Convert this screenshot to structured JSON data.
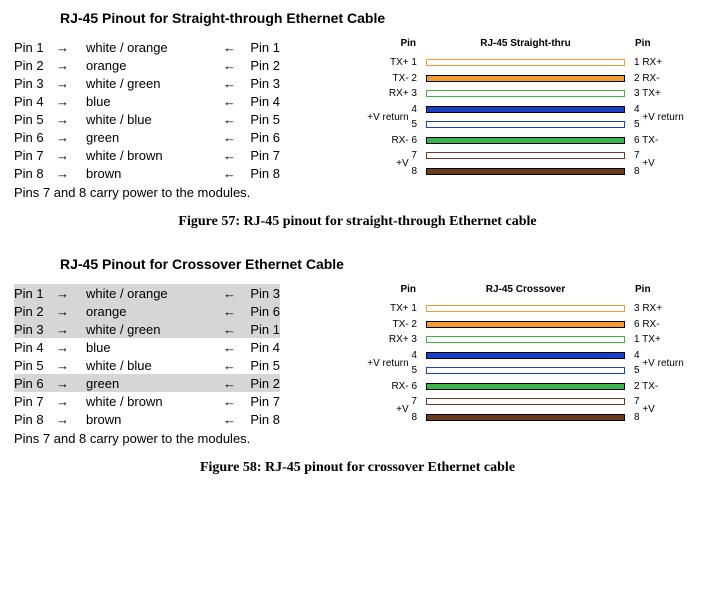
{
  "colors": {
    "white_orange": {
      "fill": "#ffffff",
      "border": "#f59a2e"
    },
    "orange": {
      "fill": "#f59a2e",
      "border": "#000000"
    },
    "white_green": {
      "fill": "#ffffff",
      "border": "#39b54a"
    },
    "blue": {
      "fill": "#1a3ec7",
      "border": "#000000"
    },
    "white_blue": {
      "fill": "#ffffff",
      "border": "#1a3ec7"
    },
    "green": {
      "fill": "#39b54a",
      "border": "#000000"
    },
    "white_brown": {
      "fill": "#ffffff",
      "border": "#6b3a1e"
    },
    "brown": {
      "fill": "#6b3a1e",
      "border": "#000000"
    }
  },
  "straight": {
    "title": "RJ-45 Pinout for Straight-through Ethernet Cable",
    "diagram_title": "RJ-45 Straight-thru",
    "rows": [
      {
        "lp": "Pin 1",
        "c": "white / orange",
        "rp": "Pin 1",
        "color": "white_orange",
        "ll": "TX+  1",
        "rl": "1  RX+",
        "hl": false,
        "br": "none"
      },
      {
        "lp": "Pin 2",
        "c": "orange",
        "rp": "Pin 2",
        "color": "orange",
        "ll": "TX-  2",
        "rl": "2  RX-",
        "hl": false,
        "br": "none"
      },
      {
        "lp": "Pin 3",
        "c": "white / green",
        "rp": "Pin 3",
        "color": "white_green",
        "ll": "RX+  3",
        "rl": "3  TX+",
        "hl": false,
        "br": "none"
      },
      {
        "lp": "Pin 4",
        "c": "blue",
        "rp": "Pin 4",
        "color": "blue",
        "ll": "4",
        "rl": "4",
        "hl": false,
        "br": "top",
        "bl_l": "+V return",
        "bl_r": "+V return"
      },
      {
        "lp": "Pin 5",
        "c": "white / blue",
        "rp": "Pin 5",
        "color": "white_blue",
        "ll": "5",
        "rl": "5",
        "hl": false,
        "br": "bot"
      },
      {
        "lp": "Pin 6",
        "c": "green",
        "rp": "Pin 6",
        "color": "green",
        "ll": "RX-  6",
        "rl": "6  TX-",
        "hl": false,
        "br": "none"
      },
      {
        "lp": "Pin 7",
        "c": "white / brown",
        "rp": "Pin 7",
        "color": "white_brown",
        "ll": "7",
        "rl": "7",
        "hl": false,
        "br": "top",
        "bl_l": "+V",
        "bl_r": "+V"
      },
      {
        "lp": "Pin 8",
        "c": "brown",
        "rp": "Pin 8",
        "color": "brown",
        "ll": "8",
        "rl": "8",
        "hl": false,
        "br": "bot"
      }
    ],
    "footnote": "Pins 7 and 8 carry power to the modules.",
    "caption": "Figure 57: RJ-45 pinout for straight-through Ethernet cable"
  },
  "crossover": {
    "title": "RJ-45 Pinout for Crossover Ethernet Cable",
    "diagram_title": "RJ-45 Crossover",
    "rows": [
      {
        "lp": "Pin 1",
        "c": "white / orange",
        "rp": "Pin 3",
        "color": "white_orange",
        "ll": "TX+  1",
        "rl": "3  RX+",
        "hl": true,
        "br": "none"
      },
      {
        "lp": "Pin 2",
        "c": "orange",
        "rp": "Pin 6",
        "color": "orange",
        "ll": "TX-  2",
        "rl": "6  RX-",
        "hl": true,
        "br": "none"
      },
      {
        "lp": "Pin 3",
        "c": "white / green",
        "rp": "Pin 1",
        "color": "white_green",
        "ll": "RX+  3",
        "rl": "1  TX+",
        "hl": true,
        "br": "none"
      },
      {
        "lp": "Pin 4",
        "c": "blue",
        "rp": "Pin 4",
        "color": "blue",
        "ll": "4",
        "rl": "4",
        "hl": false,
        "br": "top",
        "bl_l": "+V return",
        "bl_r": "+V return"
      },
      {
        "lp": "Pin 5",
        "c": "white / blue",
        "rp": "Pin 5",
        "color": "white_blue",
        "ll": "5",
        "rl": "5",
        "hl": false,
        "br": "bot"
      },
      {
        "lp": "Pin 6",
        "c": "green",
        "rp": "Pin 2",
        "color": "green",
        "ll": "RX-  6",
        "rl": "2  TX-",
        "hl": true,
        "br": "none"
      },
      {
        "lp": "Pin 7",
        "c": "white / brown",
        "rp": "Pin 7",
        "color": "white_brown",
        "ll": "7",
        "rl": "7",
        "hl": false,
        "br": "top",
        "bl_l": "+V",
        "bl_r": "+V"
      },
      {
        "lp": "Pin 8",
        "c": "brown",
        "rp": "Pin 8",
        "color": "brown",
        "ll": "8",
        "rl": "8",
        "hl": false,
        "br": "bot"
      }
    ],
    "footnote": "Pins 7 and 8 carry power to the modules.",
    "caption": "Figure 58: RJ-45 pinout for crossover Ethernet cable"
  },
  "labels": {
    "pin": "Pin",
    "arrow_r": "→",
    "arrow_l": "←"
  }
}
